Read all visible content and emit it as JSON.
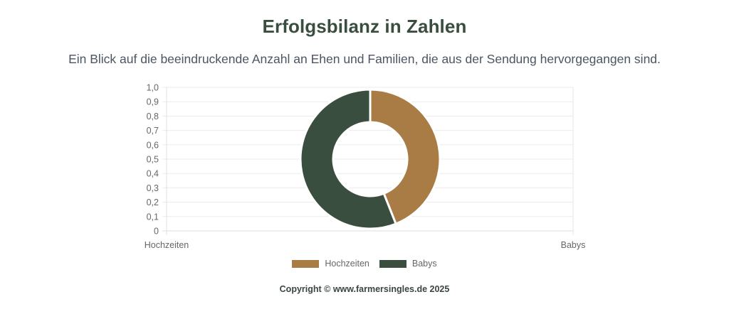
{
  "header": {
    "title": "Erfolgsbilanz in Zahlen",
    "subtitle": "Ein Blick auf die beeindruckende Anzahl an Ehen und Familien, die aus der Sendung hervorgegangen sind."
  },
  "chart_data": {
    "type": "pie",
    "variant": "doughnut",
    "title": "",
    "categories": [
      "Hochzeiten",
      "Babys"
    ],
    "values": [
      0.44,
      0.56
    ],
    "value_note": "relative shares estimated from arc angles (~160° vs ~200°); no data labels shown",
    "colors": [
      "#a97c45",
      "#3a4e40"
    ],
    "legend": {
      "position": "bottom",
      "entries": [
        "Hochzeiten",
        "Babys"
      ]
    },
    "axes_overlay": {
      "y_ticks": [
        "0",
        "0,1",
        "0,2",
        "0,3",
        "0,4",
        "0,5",
        "0,6",
        "0,7",
        "0,8",
        "0,9",
        "1,0"
      ],
      "x_ticks": [
        "Hochzeiten",
        "Babys"
      ],
      "ylim": [
        0,
        1.0
      ],
      "grid": true
    }
  },
  "legend": {
    "items": [
      {
        "label": "Hochzeiten",
        "color": "#a97c45"
      },
      {
        "label": "Babys",
        "color": "#3a4e40"
      }
    ]
  },
  "footer": {
    "copyright": "Copyright © www.farmersingles.de 2025"
  }
}
